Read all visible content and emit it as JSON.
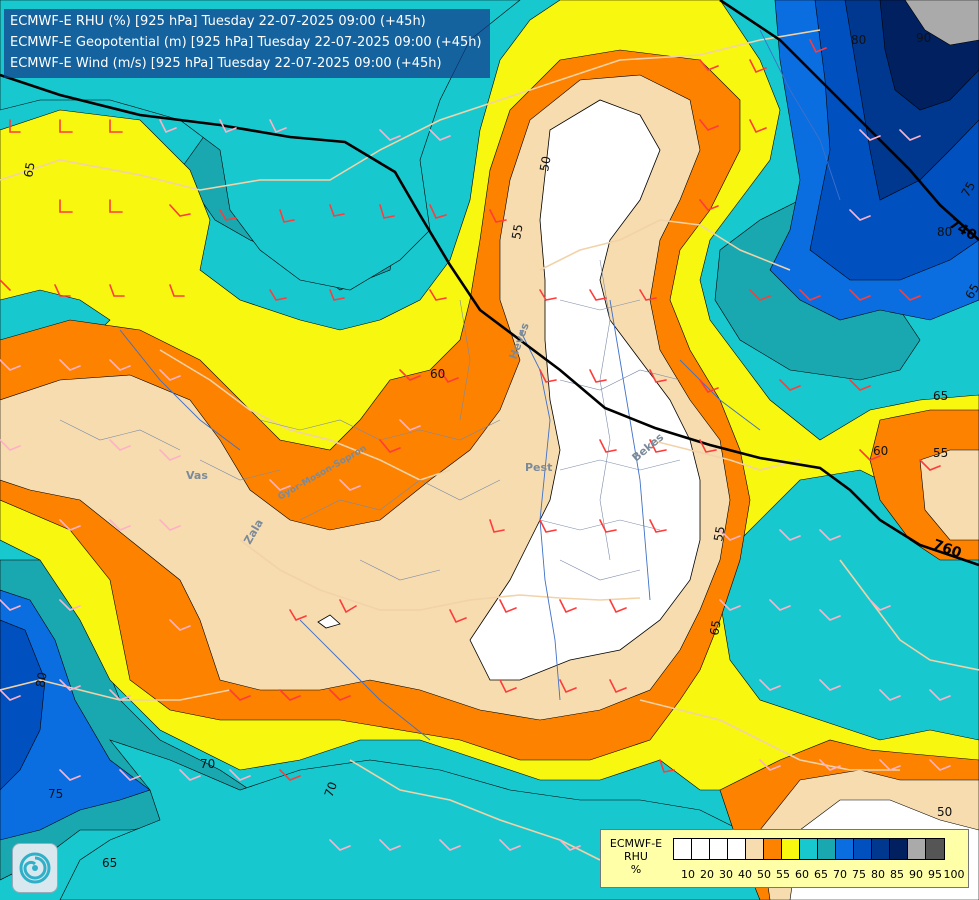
{
  "header": {
    "lines": [
      "ECMWF-E RHU (%) [925 hPa] Tuesday 22-07-2025 09:00 (+45h)",
      "ECMWF-E Geopotential (m) [925 hPa] Tuesday 22-07-2025 09:00 (+45h)",
      "ECMWF-E Wind (m/s) [925 hPa] Tuesday 22-07-2025 09:00 (+45h)"
    ]
  },
  "legend": {
    "model": "ECMWF-E",
    "variable": "RHU",
    "unit": "%",
    "ticks": [
      "10",
      "20",
      "30",
      "40",
      "50",
      "55",
      "60",
      "65",
      "70",
      "75",
      "80",
      "85",
      "90",
      "95",
      "100"
    ],
    "colors": [
      "#ffffff",
      "#ffffff",
      "#ffffff",
      "#ffffff",
      "#f7dcb0",
      "#fd8200",
      "#f7f710",
      "#17c9cf",
      "#1aa8b0",
      "#0a6ee0",
      "#0050c0",
      "#003890",
      "#002060",
      "#aaaaaa",
      "#555555"
    ]
  },
  "map": {
    "rh_labels": [
      {
        "text": "50"
      },
      {
        "text": "55"
      },
      {
        "text": "60"
      },
      {
        "text": "65"
      },
      {
        "text": "65"
      },
      {
        "text": "65"
      },
      {
        "text": "60"
      },
      {
        "text": "55"
      },
      {
        "text": "55"
      },
      {
        "text": "50"
      },
      {
        "text": "70"
      },
      {
        "text": "70"
      },
      {
        "text": "75"
      },
      {
        "text": "80"
      },
      {
        "text": "65"
      },
      {
        "text": "80"
      },
      {
        "text": "75"
      },
      {
        "text": "90"
      },
      {
        "text": "80"
      },
      {
        "text": "65"
      }
    ],
    "geo_labels": [
      "740",
      "760"
    ],
    "place_labels": [
      "Vas",
      "Zala",
      "Pest",
      "Bekes",
      "Heves",
      "Gyor-Moson-Sopron"
    ]
  }
}
